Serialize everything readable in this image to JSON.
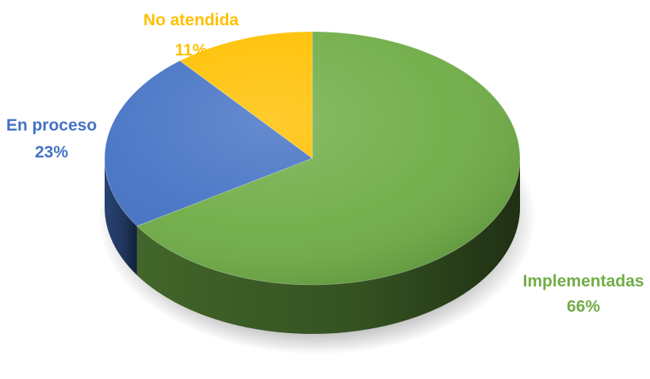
{
  "chart_data": {
    "type": "pie",
    "style": "3d",
    "title": "",
    "slices": [
      {
        "label": "Implementadas",
        "value": 66,
        "value_label": "66%",
        "color": "#70AD47"
      },
      {
        "label": "En proceso",
        "value": 23,
        "value_label": "23%",
        "color": "#4472C4"
      },
      {
        "label": "No atendida",
        "value": 11,
        "value_label": "11%",
        "color": "#FFC000"
      }
    ],
    "legend": "none",
    "data_labels": "outside"
  }
}
